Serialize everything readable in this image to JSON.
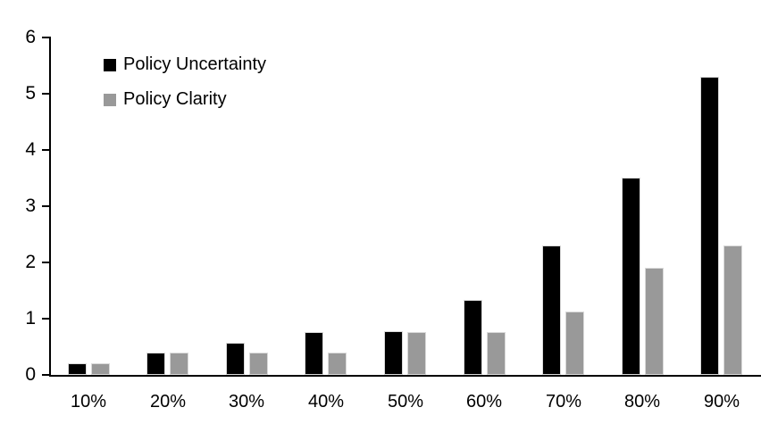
{
  "chart_data": {
    "type": "bar",
    "title": "",
    "xlabel": "",
    "ylabel": "",
    "categories": [
      "10%",
      "20%",
      "30%",
      "40%",
      "50%",
      "60%",
      "70%",
      "80%",
      "90%"
    ],
    "series": [
      {
        "name": "Policy Uncertainty",
        "color": "#000000",
        "values": [
          0.2,
          0.4,
          0.57,
          0.76,
          0.78,
          1.33,
          2.3,
          3.5,
          5.3
        ]
      },
      {
        "name": "Policy Clarity",
        "color": "#999999",
        "values": [
          0.2,
          0.4,
          0.4,
          0.4,
          0.76,
          0.76,
          1.13,
          1.9,
          2.3
        ]
      }
    ],
    "ylim": [
      0,
      6
    ],
    "yticks": [
      0,
      1,
      2,
      3,
      4,
      5,
      6
    ],
    "grid": false,
    "legend_position": "top-left"
  },
  "colors": {
    "axis": "#000000",
    "background": "#ffffff",
    "bar_edge": "#d9d9d9"
  }
}
